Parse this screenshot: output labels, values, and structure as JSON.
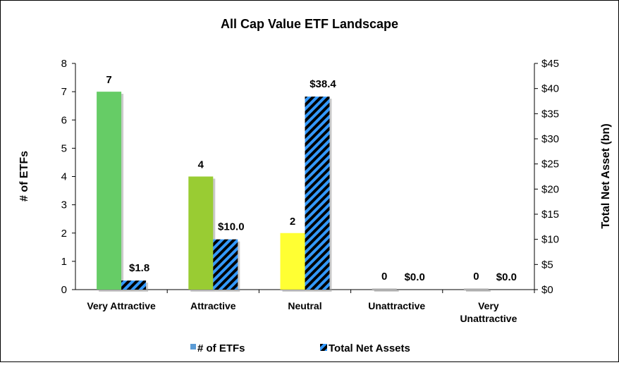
{
  "chart_data": {
    "type": "bar",
    "title": "All Cap Value ETF Landscape",
    "categories": [
      [
        "Very Attractive"
      ],
      [
        "Attractive"
      ],
      [
        "Neutral"
      ],
      [
        "Unattractive"
      ],
      [
        "Very",
        "Unattractive"
      ]
    ],
    "series": [
      {
        "name": "# of ETFs",
        "axis": "left",
        "values": [
          7,
          4,
          2,
          0,
          0
        ],
        "labels": [
          "7",
          "4",
          "2",
          "0",
          "0"
        ],
        "colors": [
          "#66cc66",
          "#99cc33",
          "#ffff33",
          "#cccccc",
          "#cccccc"
        ],
        "legend_color": "#5b9bd5"
      },
      {
        "name": "Total Net Assets",
        "axis": "right",
        "values": [
          1.8,
          10.0,
          38.4,
          0.0,
          0.0
        ],
        "labels": [
          "$1.8",
          "$10.0",
          "$38.4",
          "$0.0",
          "$0.0"
        ],
        "pattern": "diagonal-stripes",
        "colors": [
          "#3399ff",
          "#000000"
        ]
      }
    ],
    "ylabel": "# of ETFs",
    "ylim": [
      0,
      8
    ],
    "yticks": [
      "0",
      "1",
      "2",
      "3",
      "4",
      "5",
      "6",
      "7",
      "8"
    ],
    "y2label": "Total Net Asset (bn)",
    "y2lim": [
      0,
      45
    ],
    "y2ticks": [
      "$0",
      "$5",
      "$10",
      "$15",
      "$20",
      "$25",
      "$30",
      "$35",
      "$40",
      "$45"
    ],
    "grid": false,
    "legend": "bottom"
  }
}
